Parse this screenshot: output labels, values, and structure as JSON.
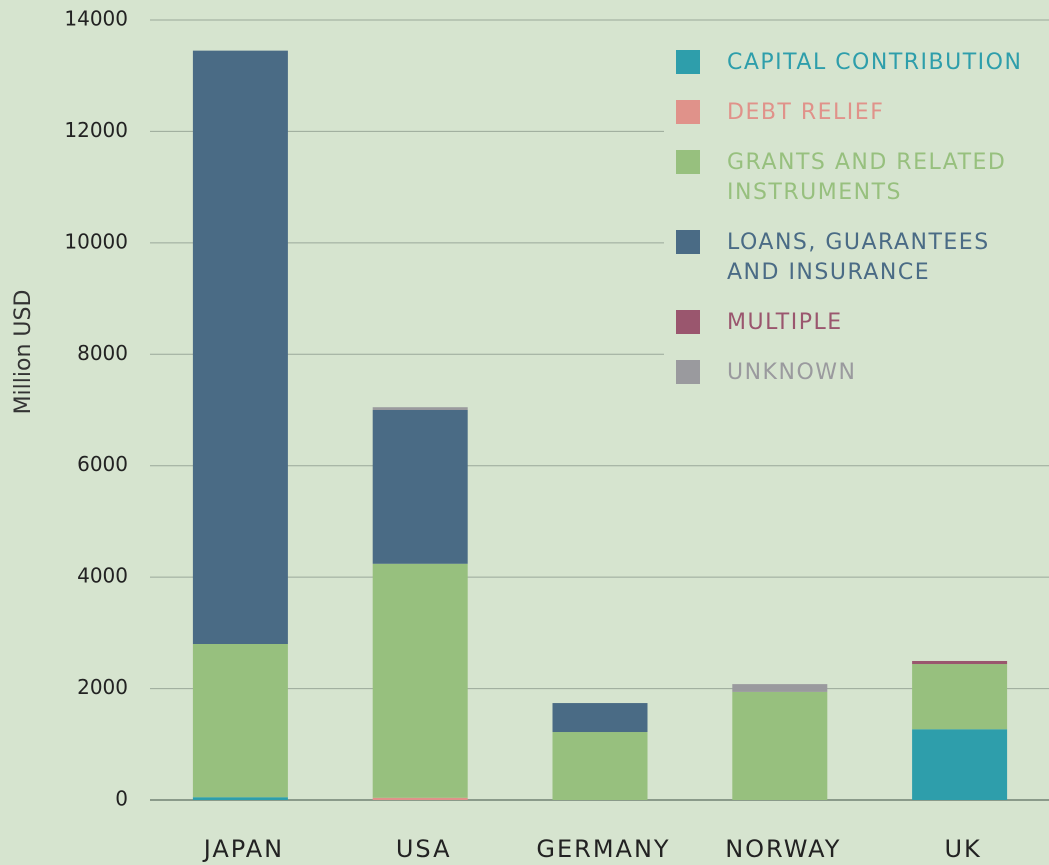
{
  "chart_data": {
    "type": "bar",
    "stacked": true,
    "y_label": "Million USD",
    "categories": [
      "JAPAN",
      "USA",
      "GERMANY",
      "NORWAY",
      "UK"
    ],
    "series": [
      {
        "name": "CAPITAL CONTRIBUTION",
        "color": "#2e9eab",
        "values": [
          50,
          0,
          0,
          0,
          1270
        ]
      },
      {
        "name": "DEBT RELIEF",
        "color": "#e0928a",
        "values": [
          0,
          40,
          0,
          0,
          0
        ]
      },
      {
        "name": "GRANTS AND RELATED INSTRUMENTS",
        "color": "#97c07e",
        "values": [
          2750,
          4200,
          1220,
          1940,
          1170
        ]
      },
      {
        "name": "LOANS, GUARANTEES AND INSURANCE",
        "color": "#4a6b85",
        "values": [
          10650,
          2760,
          520,
          0,
          0
        ]
      },
      {
        "name": "MULTIPLE",
        "color": "#9a566e",
        "values": [
          0,
          0,
          0,
          0,
          55
        ]
      },
      {
        "name": "UNKNOWN",
        "color": "#9a9a9e",
        "values": [
          0,
          50,
          0,
          140,
          0
        ]
      }
    ],
    "ylim": [
      0,
      14000
    ],
    "yticks": [
      0,
      2000,
      4000,
      6000,
      8000,
      10000,
      12000,
      14000
    ],
    "grid": true,
    "legend": "upper right"
  }
}
